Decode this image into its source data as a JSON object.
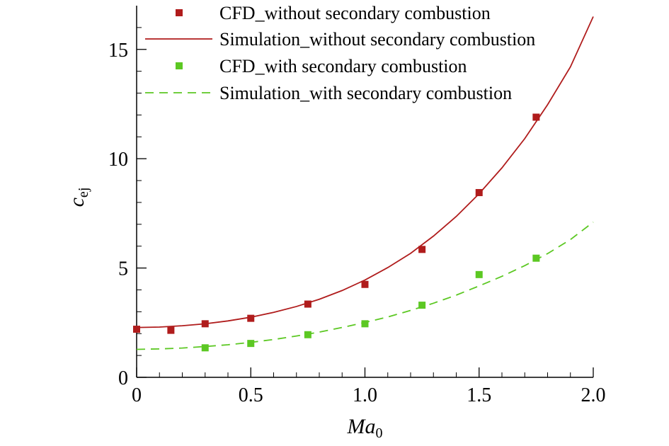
{
  "chart_data": {
    "type": "line",
    "title": "",
    "xlabel": "Ma",
    "xlabel_sub": "0",
    "ylabel": "c",
    "ylabel_sub": "ej",
    "xlim": [
      0,
      2.0
    ],
    "ylim": [
      0,
      17
    ],
    "x_ticks": [
      0,
      0.5,
      1.0,
      1.5,
      2.0
    ],
    "x_tick_labels": [
      "0",
      "0.5",
      "1.0",
      "1.5",
      "2.0"
    ],
    "y_ticks": [
      0,
      5,
      10,
      15
    ],
    "y_tick_labels": [
      "0",
      "5",
      "10",
      "15"
    ],
    "grid": false,
    "legend_position": "top",
    "series": [
      {
        "name": "CFD_without secondary combustion",
        "kind": "markers",
        "color": "#b01c1c",
        "x": [
          0,
          0.15,
          0.3,
          0.5,
          0.75,
          1.0,
          1.25,
          1.5,
          1.75
        ],
        "values": [
          2.2,
          2.15,
          2.45,
          2.7,
          3.35,
          4.25,
          5.85,
          8.45,
          11.9
        ]
      },
      {
        "name": "Simulation_without secondary combustion",
        "kind": "solid-line",
        "color": "#b01c1c",
        "x": [
          0,
          0.1,
          0.2,
          0.3,
          0.4,
          0.5,
          0.6,
          0.7,
          0.8,
          0.9,
          1.0,
          1.1,
          1.2,
          1.3,
          1.4,
          1.5,
          1.6,
          1.7,
          1.8,
          1.9,
          2.0
        ],
        "values": [
          2.28,
          2.3,
          2.36,
          2.45,
          2.58,
          2.75,
          2.97,
          3.24,
          3.57,
          3.97,
          4.45,
          5.02,
          5.67,
          6.46,
          7.36,
          8.4,
          9.58,
          10.92,
          12.47,
          14.2,
          16.5
        ]
      },
      {
        "name": "CFD_with secondary combustion",
        "kind": "markers",
        "color": "#5cc823",
        "x": [
          0.3,
          0.5,
          0.75,
          1.0,
          1.25,
          1.5,
          1.75
        ],
        "values": [
          1.35,
          1.55,
          1.95,
          2.45,
          3.3,
          4.7,
          5.45
        ]
      },
      {
        "name": "Simulation_with secondary combustion",
        "kind": "dashed-line",
        "color": "#5cc823",
        "x": [
          0,
          0.1,
          0.2,
          0.3,
          0.4,
          0.5,
          0.6,
          0.7,
          0.8,
          0.9,
          1.0,
          1.1,
          1.2,
          1.3,
          1.4,
          1.5,
          1.6,
          1.7,
          1.8,
          1.9,
          2.0
        ],
        "values": [
          1.28,
          1.3,
          1.34,
          1.41,
          1.49,
          1.6,
          1.73,
          1.89,
          2.07,
          2.28,
          2.51,
          2.76,
          3.06,
          3.39,
          3.76,
          4.18,
          4.62,
          5.11,
          5.66,
          6.3,
          7.1
        ]
      }
    ]
  }
}
